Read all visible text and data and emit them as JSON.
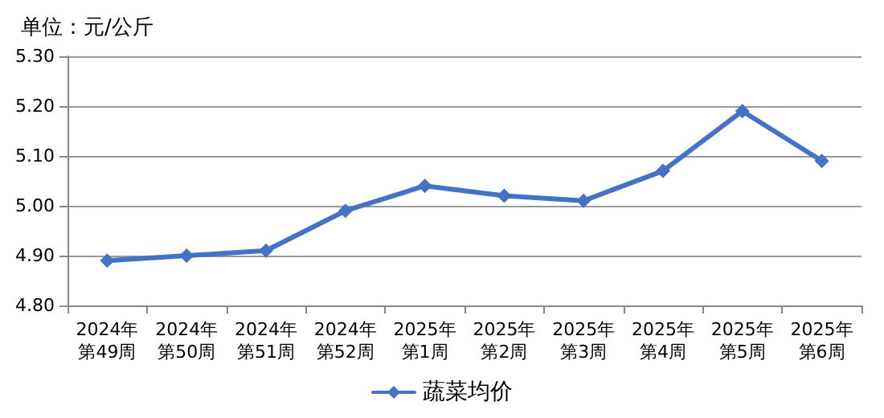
{
  "chart_data": {
    "type": "line",
    "ylabel": "单位：元/公斤",
    "categories": [
      "2024年第49周",
      "2024年第50周",
      "2024年第51周",
      "2024年第52周",
      "2025年第1周",
      "2025年第2周",
      "2025年第3周",
      "2025年第4周",
      "2025年第5周",
      "2025年第6周"
    ],
    "series": [
      {
        "name": "蔬菜均价",
        "color": "#4472c4",
        "values": [
          4.89,
          4.9,
          4.91,
          4.99,
          5.04,
          5.02,
          5.01,
          5.07,
          5.19,
          5.09
        ]
      }
    ],
    "ylim": [
      4.8,
      5.3
    ],
    "yticks": [
      {
        "value": 4.8,
        "label": "4.80"
      },
      {
        "value": 4.9,
        "label": "4.90"
      },
      {
        "value": 5.0,
        "label": "5.00"
      },
      {
        "value": 5.1,
        "label": "5.10"
      },
      {
        "value": 5.2,
        "label": "5.20"
      },
      {
        "value": 5.3,
        "label": "5.30"
      }
    ],
    "grid": "y",
    "legend": "bottom",
    "marker": "diamond",
    "line_style": "solid"
  }
}
